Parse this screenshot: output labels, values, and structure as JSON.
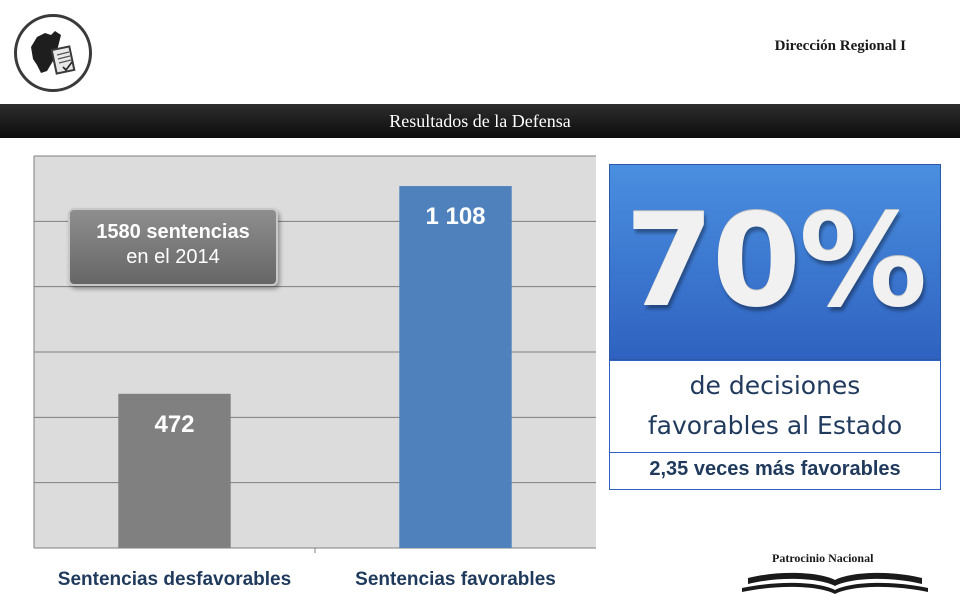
{
  "header": {
    "region": "Dirección Regional I",
    "band_title": "Resultados de la Defensa"
  },
  "callout": {
    "line1": "1580 sentencias",
    "line2": "en el 2014"
  },
  "highlight": {
    "percent": "70%",
    "description_line1": "de decisiones",
    "description_line2": "favorables al Estado",
    "ratio_text": "2,35  veces más favorables",
    "box_color": "#3e7bd6"
  },
  "footer": {
    "patrocinio": "Patrocinio Nacional"
  },
  "chart_data": {
    "type": "bar",
    "categories": [
      "Sentencias desfavorables",
      "Sentencias favorables"
    ],
    "values": [
      472,
      1108
    ],
    "data_labels": [
      "472",
      "1 108"
    ],
    "colors": [
      "#808080",
      "#4f81bd"
    ],
    "ylim": [
      0,
      1200
    ],
    "grid": true,
    "title": "",
    "xlabel": "",
    "ylabel": ""
  }
}
